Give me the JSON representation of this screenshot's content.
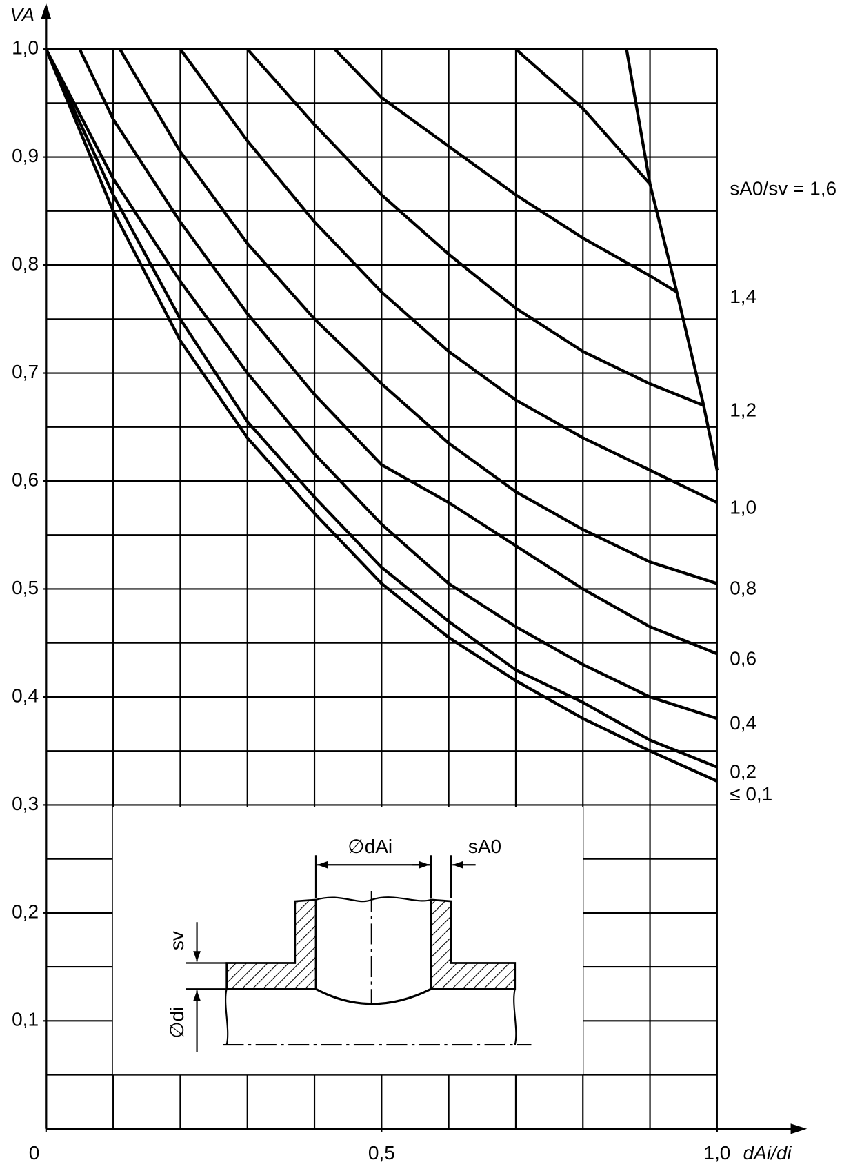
{
  "chart_data": {
    "type": "line",
    "y_label": "VA",
    "x_label": "dAi/di",
    "xlim": [
      0,
      1.0
    ],
    "ylim": [
      0,
      1.0
    ],
    "xticks": [
      {
        "value": 0,
        "label": "0"
      },
      {
        "value": 0.5,
        "label": "0,5"
      },
      {
        "value": 1.0,
        "label": "1,0"
      }
    ],
    "yticks": [
      {
        "value": 0.1,
        "label": "0,1"
      },
      {
        "value": 0.2,
        "label": "0,2"
      },
      {
        "value": 0.3,
        "label": "0,3"
      },
      {
        "value": 0.4,
        "label": "0,4"
      },
      {
        "value": 0.5,
        "label": "0,5"
      },
      {
        "value": 0.6,
        "label": "0,6"
      },
      {
        "value": 0.7,
        "label": "0,7"
      },
      {
        "value": 0.8,
        "label": "0,8"
      },
      {
        "value": 0.9,
        "label": "0,9"
      },
      {
        "value": 1.0,
        "label": "1,0"
      }
    ],
    "xgrid": [
      0.1,
      0.2,
      0.3,
      0.4,
      0.5,
      0.6,
      0.7,
      0.8,
      0.9,
      1.0
    ],
    "ygrid": [
      0.05,
      0.1,
      0.15,
      0.2,
      0.25,
      0.3,
      0.35,
      0.4,
      0.45,
      0.5,
      0.55,
      0.6,
      0.65,
      0.7,
      0.75,
      0.8,
      0.85,
      0.9,
      0.95,
      1.0
    ],
    "grid": true,
    "color": "#000000",
    "series": [
      {
        "name": "sA0/sv = 1,6",
        "x": [
          0.7,
          0.8,
          0.9
        ],
        "values": [
          1.0,
          0.945,
          0.875
        ]
      },
      {
        "name": "1,4",
        "x": [
          0.43,
          0.5,
          0.6,
          0.7,
          0.8,
          0.9,
          0.94
        ],
        "values": [
          1.0,
          0.955,
          0.91,
          0.865,
          0.825,
          0.79,
          0.775
        ]
      },
      {
        "name": "1,2",
        "x": [
          0.3,
          0.4,
          0.5,
          0.6,
          0.7,
          0.8,
          0.9,
          0.98
        ],
        "values": [
          1.0,
          0.93,
          0.865,
          0.81,
          0.76,
          0.72,
          0.69,
          0.67
        ]
      },
      {
        "name": "1,0",
        "x": [
          0.2,
          0.3,
          0.4,
          0.5,
          0.6,
          0.7,
          0.8,
          0.9,
          1.0
        ],
        "values": [
          1.0,
          0.915,
          0.84,
          0.775,
          0.72,
          0.675,
          0.64,
          0.61,
          0.58
        ]
      },
      {
        "name": "0,8",
        "x": [
          0.11,
          0.2,
          0.3,
          0.4,
          0.5,
          0.6,
          0.7,
          0.8,
          0.9,
          1.0
        ],
        "values": [
          1.0,
          0.905,
          0.82,
          0.75,
          0.69,
          0.635,
          0.59,
          0.555,
          0.525,
          0.505
        ]
      },
      {
        "name": "0,6",
        "x": [
          0.05,
          0.1,
          0.2,
          0.3,
          0.4,
          0.5,
          0.6,
          0.7,
          0.8,
          0.9,
          1.0
        ],
        "values": [
          1.0,
          0.935,
          0.84,
          0.755,
          0.68,
          0.615,
          0.58,
          0.54,
          0.5,
          0.465,
          0.44
        ]
      },
      {
        "name": "0,4",
        "x": [
          0,
          0.1,
          0.2,
          0.3,
          0.4,
          0.5,
          0.6,
          0.7,
          0.8,
          0.9,
          1.0
        ],
        "values": [
          1.0,
          0.88,
          0.785,
          0.7,
          0.625,
          0.56,
          0.505,
          0.465,
          0.43,
          0.4,
          0.38
        ]
      },
      {
        "name": "0,2",
        "x": [
          0,
          0.1,
          0.2,
          0.3,
          0.4,
          0.5,
          0.6,
          0.7,
          0.8,
          0.9,
          1.0
        ],
        "values": [
          1.0,
          0.865,
          0.75,
          0.655,
          0.585,
          0.52,
          0.47,
          0.425,
          0.395,
          0.36,
          0.335
        ]
      },
      {
        "name": "≤ 0,1",
        "x": [
          0,
          0.1,
          0.2,
          0.3,
          0.4,
          0.5,
          0.6,
          0.7,
          0.8,
          0.9,
          1.0
        ],
        "values": [
          1.0,
          0.85,
          0.73,
          0.64,
          0.57,
          0.505,
          0.455,
          0.415,
          0.38,
          0.35,
          0.322
        ]
      },
      {
        "x": [
          0.865,
          0.9,
          0.94,
          0.98,
          1.0
        ],
        "values": [
          1.0,
          0.875,
          0.775,
          0.67,
          0.61
        ]
      }
    ]
  },
  "inset": {
    "d_ai": "∅dAi",
    "s_a0": "sA0",
    "s_v": "sv",
    "d_i": "∅di"
  }
}
